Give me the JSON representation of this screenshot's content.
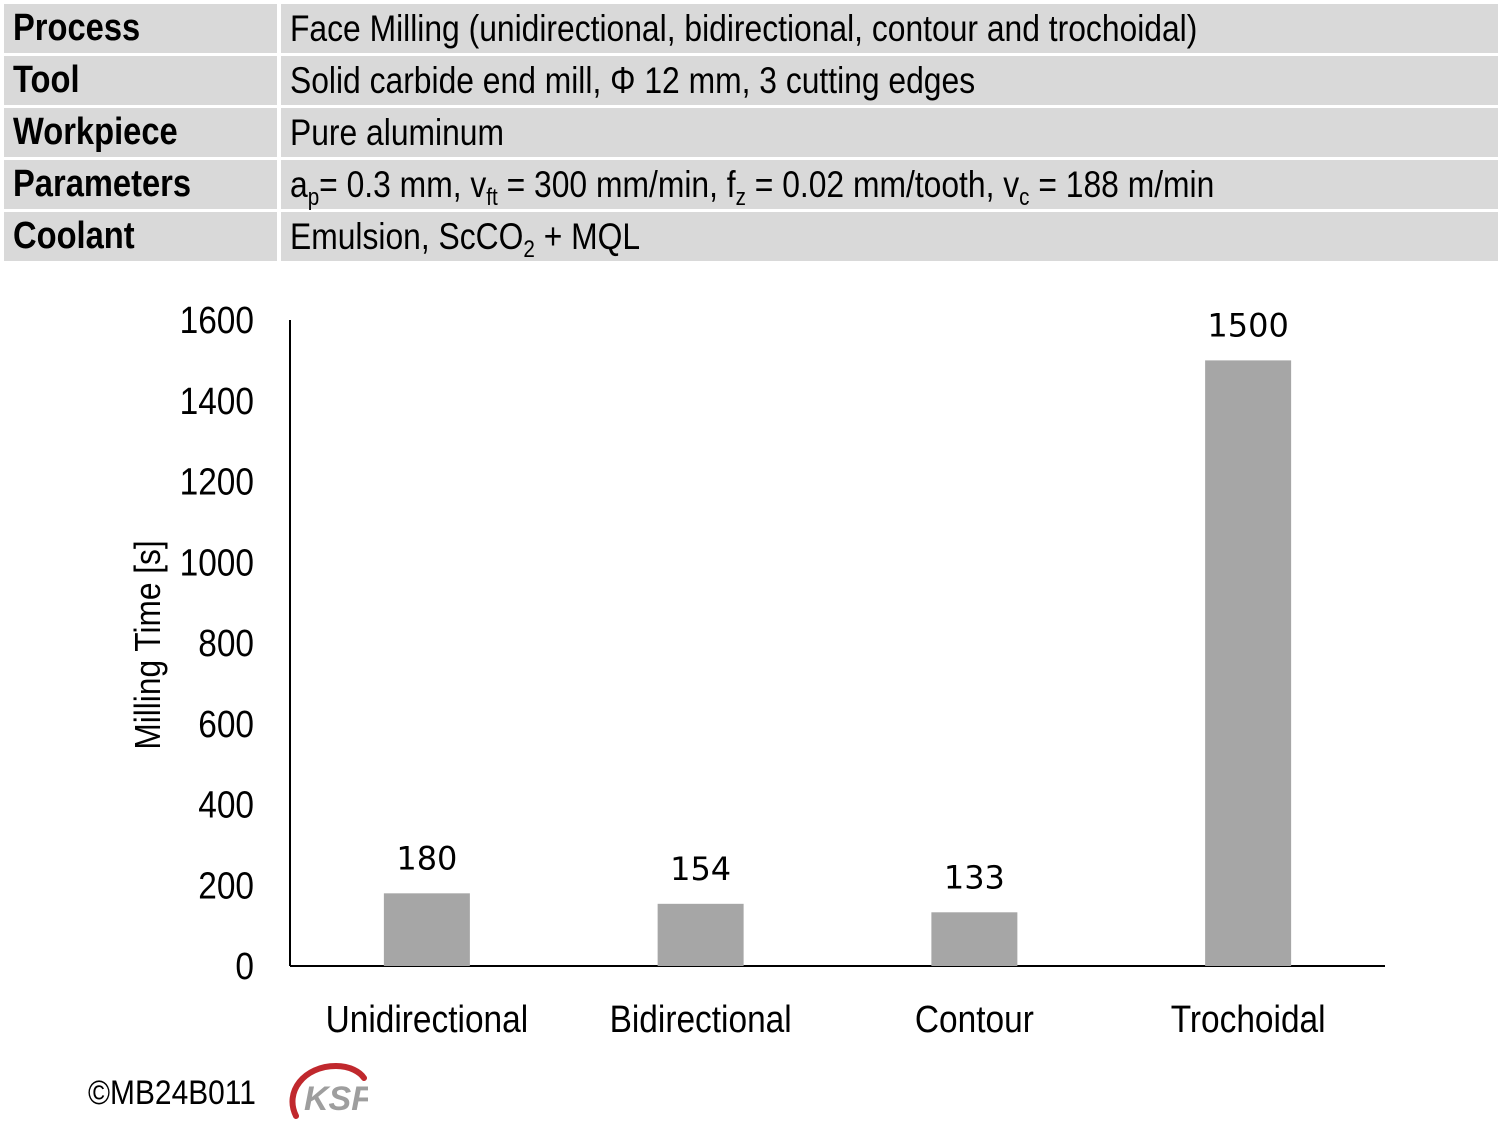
{
  "table": {
    "rows": [
      {
        "label": "Process",
        "value": "Face Milling (unidirectional, bidirectional, contour and trochoidal)"
      },
      {
        "label": "Tool",
        "value": "Solid carbide end mill, Φ 12 mm, 3 cutting edges"
      },
      {
        "label": "Workpiece",
        "value": "Pure aluminum"
      },
      {
        "label": "Parameters",
        "parts": {
          "a": "a",
          "a_sub": "p",
          "a_val": "= 0.3 mm, ",
          "v": "v",
          "v_sub": "ft",
          "v_val": " = 300 mm/min, ",
          "f": "f",
          "f_sub": "z",
          "f_val": " = 0.02 mm/tooth, ",
          "vc": "v",
          "vc_sub": "c",
          "vc_val": " = 188 m/min"
        }
      },
      {
        "label": "Coolant",
        "parts": {
          "pre": "Emulsion, ScCO",
          "sub": "2",
          "post": " + MQL"
        }
      }
    ]
  },
  "chart_data": {
    "type": "bar",
    "categories": [
      "Unidirectional",
      "Bidirectional",
      "Contour",
      "Trochoidal"
    ],
    "values": [
      180,
      154,
      133,
      1500
    ],
    "data_labels": [
      "180",
      "154",
      "133",
      "1500"
    ],
    "ylabel": "Milling Time [s]",
    "xlabel": "",
    "ylim": [
      0,
      1600
    ],
    "yticks": [
      0,
      200,
      400,
      600,
      800,
      1000,
      1200,
      1400,
      1600
    ],
    "bar_color": "#a6a6a6",
    "grid": false
  },
  "footer": {
    "copyright": "©MB24B011",
    "logo_text": "KSF",
    "logo_color": "#c0282d"
  }
}
